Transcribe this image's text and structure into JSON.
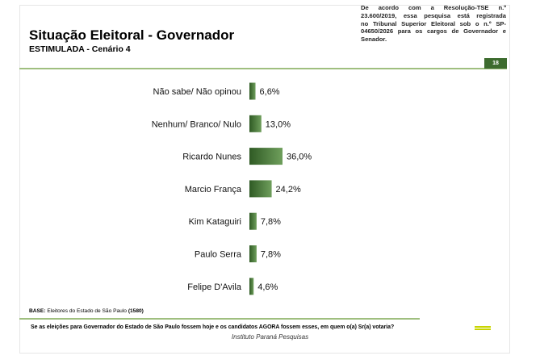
{
  "header": {
    "title": "Situação Eleitoral - Governador",
    "subtitle": "ESTIMULADA - Cenário 4",
    "note_lines": [
      "De acordo com a Resolução-TSE n.º",
      "23.600/2019, essa pesquisa está registrada",
      "no Tribunal Superior Eleitoral sob o n.º SP-",
      "04650/2026 para os cargos de Governador e",
      "Senador."
    ],
    "page_number": "18"
  },
  "footer": {
    "base_label": "BASE:",
    "base_text": "Eleitores do Estado de São Paulo",
    "base_count": "(1580)",
    "question": "Se as eleições para Governador do Estado de São Paulo fossem hoje e os candidatos AGORA fossem esses, em quem o(a) Sr(a) votaria?",
    "source": "Instituto Paraná Pesquisas"
  },
  "colors": {
    "bar_dark": "#2f5a24",
    "bar_light": "#6f9f5c",
    "accent_line": "#9fbf7f",
    "page_badge": "#3d6b2e"
  },
  "chart_data": {
    "type": "bar",
    "orientation": "horizontal",
    "categories": [
      "Não sabe/ Não opinou",
      "Nenhum/ Branco/ Nulo",
      "Ricardo Nunes",
      "Marcio França",
      "Kim Kataguiri",
      "Paulo Serra",
      "Felipe D'Avila"
    ],
    "values": [
      6.6,
      13.0,
      36.0,
      24.2,
      7.8,
      7.8,
      4.6
    ],
    "value_labels": [
      "6,6%",
      "13,0%",
      "36,0%",
      "24,2%",
      "7,8%",
      "7,8%",
      "4,6%"
    ],
    "unit": "%",
    "xlim": [
      0,
      36
    ],
    "grid": false,
    "legend": "none"
  }
}
